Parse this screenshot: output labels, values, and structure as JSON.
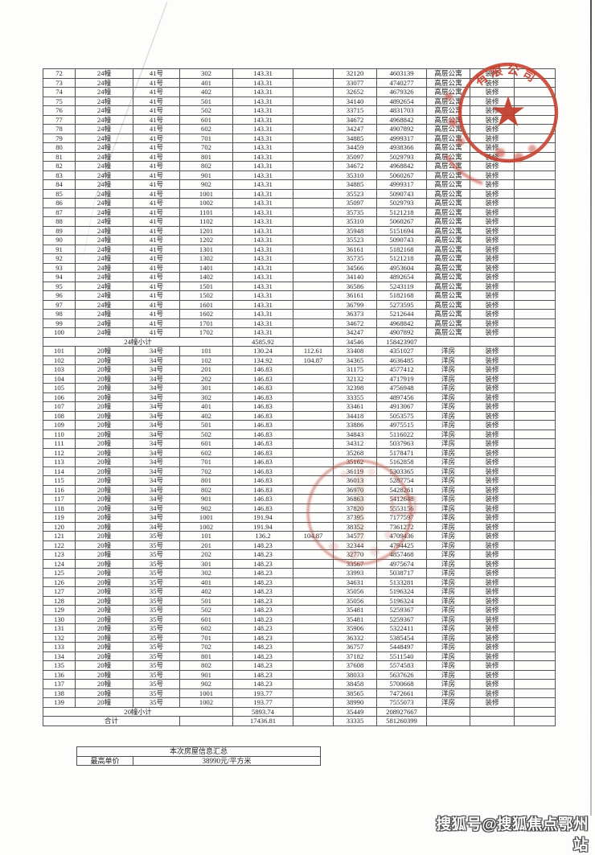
{
  "stamp": {
    "arc_text": "有限公司",
    "color": "#c5402f"
  },
  "watermark": {
    "text": "搜狐号@搜狐焦点鄂州站"
  },
  "summary_table": {
    "title": "本次房屋信息汇总",
    "label": "最高单价",
    "value": "38990元/平方米"
  },
  "main_table": {
    "rows": [
      [
        "72",
        "24幢",
        "41号",
        "302",
        "143.31",
        "",
        "32120",
        "4603139",
        "高层公寓",
        "装修"
      ],
      [
        "73",
        "24幢",
        "41号",
        "401",
        "143.31",
        "",
        "33077",
        "4740277",
        "高层公寓",
        "装修"
      ],
      [
        "74",
        "24幢",
        "41号",
        "402",
        "143.31",
        "",
        "32652",
        "4679326",
        "高层公寓",
        "装修"
      ],
      [
        "75",
        "24幢",
        "41号",
        "501",
        "143.31",
        "",
        "34140",
        "4892654",
        "高层公寓",
        "装修"
      ],
      [
        "76",
        "24幢",
        "41号",
        "502",
        "143.31",
        "",
        "33715",
        "4831703",
        "高层公寓",
        "装修"
      ],
      [
        "77",
        "24幢",
        "41号",
        "601",
        "143.31",
        "",
        "34672",
        "4968842",
        "高层公寓",
        "装修"
      ],
      [
        "78",
        "24幢",
        "41号",
        "602",
        "143.31",
        "",
        "34247",
        "4907892",
        "高层公寓",
        "装修"
      ],
      [
        "79",
        "24幢",
        "41号",
        "701",
        "143.31",
        "",
        "34885",
        "4999317",
        "高层公寓",
        "装修"
      ],
      [
        "80",
        "24幢",
        "41号",
        "702",
        "143.31",
        "",
        "34459",
        "4938366",
        "高层公寓",
        "装修"
      ],
      [
        "81",
        "24幢",
        "41号",
        "801",
        "143.31",
        "",
        "35097",
        "5029793",
        "高层公寓",
        "装修"
      ],
      [
        "82",
        "24幢",
        "41号",
        "802",
        "143.31",
        "",
        "34672",
        "4968842",
        "高层公寓",
        "装修"
      ],
      [
        "83",
        "24幢",
        "41号",
        "901",
        "143.31",
        "",
        "35310",
        "5060267",
        "高层公寓",
        "装修"
      ],
      [
        "84",
        "24幢",
        "41号",
        "902",
        "143.31",
        "",
        "34885",
        "4999317",
        "高层公寓",
        "装修"
      ],
      [
        "85",
        "24幢",
        "41号",
        "1001",
        "143.31",
        "",
        "35523",
        "5090743",
        "高层公寓",
        "装修"
      ],
      [
        "86",
        "24幢",
        "41号",
        "1002",
        "143.31",
        "",
        "35097",
        "5029793",
        "高层公寓",
        "装修"
      ],
      [
        "87",
        "24幢",
        "41号",
        "1101",
        "143.31",
        "",
        "35735",
        "5121218",
        "高层公寓",
        "装修"
      ],
      [
        "88",
        "24幢",
        "41号",
        "1102",
        "143.31",
        "",
        "35310",
        "5060267",
        "高层公寓",
        "装修"
      ],
      [
        "89",
        "24幢",
        "41号",
        "1201",
        "143.31",
        "",
        "35948",
        "5151694",
        "高层公寓",
        "装修"
      ],
      [
        "90",
        "24幢",
        "41号",
        "1202",
        "143.31",
        "",
        "35523",
        "5090743",
        "高层公寓",
        "装修"
      ],
      [
        "91",
        "24幢",
        "41号",
        "1301",
        "143.31",
        "",
        "36161",
        "5182168",
        "高层公寓",
        "装修"
      ],
      [
        "92",
        "24幢",
        "41号",
        "1302",
        "143.31",
        "",
        "35735",
        "5121218",
        "高层公寓",
        "装修"
      ],
      [
        "93",
        "24幢",
        "41号",
        "1401",
        "143.31",
        "",
        "34566",
        "4953604",
        "高层公寓",
        "装修"
      ],
      [
        "94",
        "24幢",
        "41号",
        "1402",
        "143.31",
        "",
        "34140",
        "4892654",
        "高层公寓",
        "装修"
      ],
      [
        "95",
        "24幢",
        "41号",
        "1501",
        "143.31",
        "",
        "36586",
        "5243119",
        "高层公寓",
        "装修"
      ],
      [
        "96",
        "24幢",
        "41号",
        "1502",
        "143.31",
        "",
        "36161",
        "5182168",
        "高层公寓",
        "装修"
      ],
      [
        "97",
        "24幢",
        "41号",
        "1601",
        "143.31",
        "",
        "36799",
        "5273595",
        "高层公寓",
        "装修"
      ],
      [
        "98",
        "24幢",
        "41号",
        "1602",
        "143.31",
        "",
        "36373",
        "5212644",
        "高层公寓",
        "装修"
      ],
      [
        "99",
        "24幢",
        "41号",
        "1701",
        "143.31",
        "",
        "34672",
        "4968842",
        "高层公寓",
        "装修"
      ],
      [
        "100",
        "24幢",
        "41号",
        "1702",
        "143.31",
        "",
        "34247",
        "4907892",
        "高层公寓",
        "装修"
      ],
      {
        "k": "s",
        "label": "24幢小计",
        "area": "4585.92",
        "price": "34546",
        "total": "158423907"
      },
      [
        "101",
        "20幢",
        "34号",
        "101",
        "130.24",
        "112.61",
        "33408",
        "4351027",
        "洋房",
        "装修"
      ],
      [
        "102",
        "20幢",
        "34号",
        "102",
        "134.92",
        "104.87",
        "34365",
        "4636485",
        "洋房",
        "装修"
      ],
      [
        "103",
        "20幢",
        "34号",
        "201",
        "146.83",
        "",
        "31175",
        "4577412",
        "洋房",
        "装修"
      ],
      [
        "104",
        "20幢",
        "34号",
        "202",
        "146.83",
        "",
        "32132",
        "4717919",
        "洋房",
        "装修"
      ],
      [
        "105",
        "20幢",
        "34号",
        "301",
        "146.83",
        "",
        "32398",
        "4756948",
        "洋房",
        "装修"
      ],
      [
        "106",
        "20幢",
        "34号",
        "302",
        "146.83",
        "",
        "33355",
        "4897456",
        "洋房",
        "装修"
      ],
      [
        "107",
        "20幢",
        "34号",
        "401",
        "146.83",
        "",
        "33461",
        "4913067",
        "洋房",
        "装修"
      ],
      [
        "108",
        "20幢",
        "34号",
        "402",
        "146.83",
        "",
        "34418",
        "5053575",
        "洋房",
        "装修"
      ],
      [
        "109",
        "20幢",
        "34号",
        "501",
        "146.83",
        "",
        "33886",
        "4975515",
        "洋房",
        "装修"
      ],
      [
        "110",
        "20幢",
        "34号",
        "502",
        "146.83",
        "",
        "34843",
        "5116022",
        "洋房",
        "装修"
      ],
      [
        "111",
        "20幢",
        "34号",
        "601",
        "146.83",
        "",
        "34312",
        "5037963",
        "洋房",
        "装修"
      ],
      [
        "112",
        "20幢",
        "34号",
        "602",
        "146.83",
        "",
        "35268",
        "5178471",
        "洋房",
        "装修"
      ],
      [
        "113",
        "20幢",
        "34号",
        "701",
        "146.83",
        "",
        "35162",
        "5162858",
        "洋房",
        "装修"
      ],
      [
        "114",
        "20幢",
        "34号",
        "702",
        "146.83",
        "",
        "36119",
        "5303365",
        "洋房",
        "装修"
      ],
      [
        "115",
        "20幢",
        "34号",
        "801",
        "146.83",
        "",
        "36013",
        "5287754",
        "洋房",
        "装修"
      ],
      [
        "116",
        "20幢",
        "34号",
        "802",
        "146.83",
        "",
        "36970",
        "5428261",
        "洋房",
        "装修"
      ],
      [
        "117",
        "20幢",
        "34号",
        "901",
        "146.83",
        "",
        "36863",
        "5412648",
        "洋房",
        "装修"
      ],
      [
        "118",
        "20幢",
        "34号",
        "902",
        "146.83",
        "",
        "37820",
        "5553156",
        "洋房",
        "装修"
      ],
      [
        "119",
        "20幢",
        "34号",
        "1001",
        "191.94",
        "",
        "37395",
        "7177597",
        "洋房",
        "装修"
      ],
      [
        "120",
        "20幢",
        "34号",
        "1002",
        "191.94",
        "",
        "38352",
        "7361272",
        "洋房",
        "装修"
      ],
      [
        "121",
        "20幢",
        "35号",
        "101",
        "136.2",
        "104.87",
        "34577",
        "4709436",
        "洋房",
        "装修"
      ],
      [
        "122",
        "20幢",
        "35号",
        "201",
        "148.23",
        "",
        "32344",
        "4794425",
        "洋房",
        "装修"
      ],
      [
        "123",
        "20幢",
        "35号",
        "202",
        "148.23",
        "",
        "32770",
        "4857468",
        "洋房",
        "装修"
      ],
      [
        "124",
        "20幢",
        "35号",
        "301",
        "148.23",
        "",
        "33567",
        "4975674",
        "洋房",
        "装修"
      ],
      [
        "125",
        "20幢",
        "35号",
        "302",
        "148.23",
        "",
        "33993",
        "5038717",
        "洋房",
        "装修"
      ],
      [
        "126",
        "20幢",
        "35号",
        "401",
        "148.23",
        "",
        "34631",
        "5133281",
        "洋房",
        "装修"
      ],
      [
        "127",
        "20幢",
        "35号",
        "402",
        "148.23",
        "",
        "35056",
        "5196324",
        "洋房",
        "装修"
      ],
      [
        "128",
        "20幢",
        "35号",
        "501",
        "148.23",
        "",
        "35056",
        "5196324",
        "洋房",
        "装修"
      ],
      [
        "129",
        "20幢",
        "35号",
        "502",
        "148.23",
        "",
        "35481",
        "5259367",
        "洋房",
        "装修"
      ],
      [
        "130",
        "20幢",
        "35号",
        "601",
        "148.23",
        "",
        "35481",
        "5259367",
        "洋房",
        "装修"
      ],
      [
        "131",
        "20幢",
        "35号",
        "602",
        "148.23",
        "",
        "35906",
        "5322411",
        "洋房",
        "装修"
      ],
      [
        "132",
        "20幢",
        "35号",
        "701",
        "148.23",
        "",
        "36332",
        "5385454",
        "洋房",
        "装修"
      ],
      [
        "133",
        "20幢",
        "35号",
        "702",
        "148.23",
        "",
        "36757",
        "5448497",
        "洋房",
        "装修"
      ],
      [
        "134",
        "20幢",
        "35号",
        "801",
        "148.23",
        "",
        "37182",
        "5511540",
        "洋房",
        "装修"
      ],
      [
        "135",
        "20幢",
        "35号",
        "802",
        "148.23",
        "",
        "37608",
        "5574583",
        "洋房",
        "装修"
      ],
      [
        "136",
        "20幢",
        "35号",
        "901",
        "148.23",
        "",
        "38033",
        "5637626",
        "洋房",
        "装修"
      ],
      [
        "137",
        "20幢",
        "35号",
        "902",
        "148.23",
        "",
        "38458",
        "5700668",
        "洋房",
        "装修"
      ],
      [
        "138",
        "20幢",
        "35号",
        "1001",
        "193.77",
        "",
        "38565",
        "7472661",
        "洋房",
        "装修"
      ],
      [
        "139",
        "20幢",
        "35号",
        "1002",
        "193.77",
        "",
        "38990",
        "7555073",
        "洋房",
        "装修"
      ],
      {
        "k": "s",
        "label": "20幢小计",
        "area": "5893.74",
        "price": "35449",
        "total": "208927667"
      },
      {
        "k": "t",
        "label": "合计",
        "area": "17436.81",
        "price": "33335",
        "total": "581260399"
      }
    ]
  }
}
